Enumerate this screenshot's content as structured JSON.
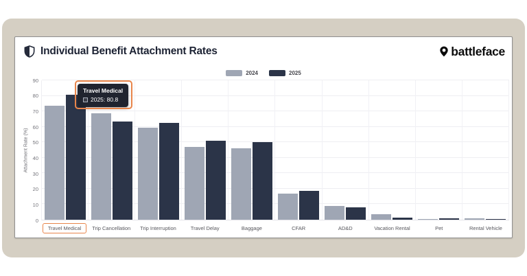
{
  "header": {
    "title": "Individual Benefit Attachment Rates",
    "brand": "battleface"
  },
  "chart_data": {
    "type": "bar",
    "title": "Individual Benefit Attachment Rates",
    "categories": [
      "Travel Medical",
      "Trip Cancellation",
      "Trip Interruption",
      "Travel Delay",
      "Baggage",
      "CFAR",
      "AD&D",
      "Vacation Rental",
      "Pet",
      "Rental Vehicle"
    ],
    "series": [
      {
        "name": "2024",
        "color": "#9fa6b4",
        "values": [
          73.5,
          68.6,
          59.2,
          47.1,
          45.9,
          16.9,
          9.0,
          3.4,
          0.4,
          0.9
        ]
      },
      {
        "name": "2025",
        "color": "#2b3448",
        "values": [
          80.8,
          63.2,
          62.6,
          51.2,
          50.1,
          18.8,
          8.1,
          1.3,
          1.0,
          0.6
        ]
      }
    ],
    "xlabel": "",
    "ylabel": "Attachment Rate (%)",
    "ylim": [
      0,
      90
    ],
    "ytick_step": 10,
    "grid": true,
    "legend_position": "top-center"
  },
  "tooltip": {
    "title": "Travel Medical",
    "series": "2025",
    "value": "80.8",
    "text": "2025: 80.8"
  },
  "annotations": {
    "highlighted_category": "Travel Medical",
    "highlight_color": "#e8854a"
  },
  "colors": {
    "frame": "#d5cfc3",
    "card_bg": "#ffffff",
    "title_text": "#1d2334",
    "bar_2024": "#9fa6b4",
    "bar_2025": "#2b3448",
    "tooltip_bg": "#20242f",
    "accent_highlight": "#e8854a"
  }
}
